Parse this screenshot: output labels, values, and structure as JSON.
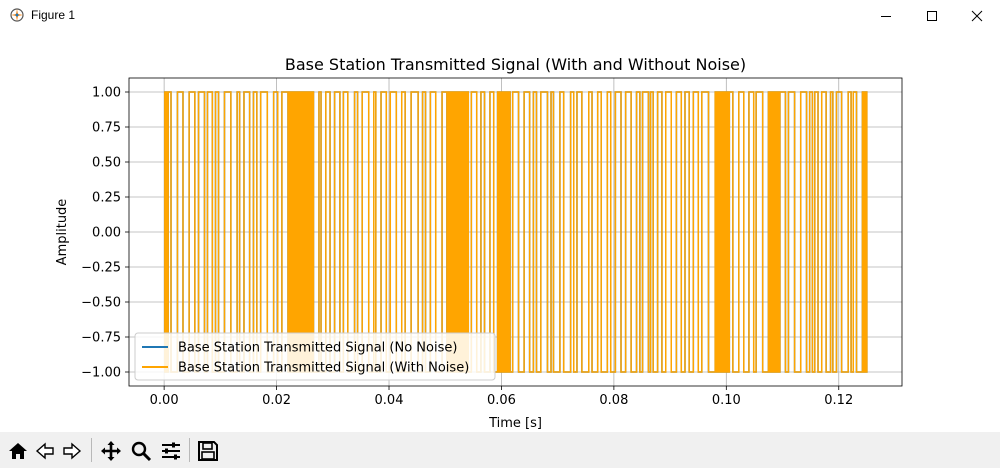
{
  "window": {
    "title": "Figure 1",
    "icons": [
      "app-icon",
      "minimize-icon",
      "maximize-icon",
      "close-icon"
    ]
  },
  "toolbar": {
    "icons": [
      "home-icon",
      "back-icon",
      "forward-icon",
      "pan-icon",
      "zoom-icon",
      "configure-subplots-icon",
      "save-icon"
    ]
  },
  "colors": {
    "no_noise": "#1f77b4",
    "with_noise": "#ffa500",
    "grid": "#b0b0b0",
    "axes": "#000000"
  },
  "chart_data": {
    "type": "line",
    "title": "Base Station Transmitted Signal (With and Without Noise)",
    "xlabel": "Time [s]",
    "ylabel": "Amplitude",
    "xlim": [
      -0.00625,
      0.13125
    ],
    "ylim": [
      -1.1,
      1.1
    ],
    "xticks": [
      0.0,
      0.02,
      0.04,
      0.06,
      0.08,
      0.1,
      0.12
    ],
    "xtick_labels": [
      "0.00",
      "0.02",
      "0.04",
      "0.06",
      "0.08",
      "0.10",
      "0.12"
    ],
    "yticks": [
      1.0,
      0.75,
      0.5,
      0.25,
      0.0,
      -0.25,
      -0.5,
      -0.75,
      -1.0
    ],
    "ytick_labels": [
      "1.00",
      "0.75",
      "0.50",
      "0.25",
      "0.00",
      "−0.25",
      "−0.50",
      "−0.75",
      "−1.00"
    ],
    "grid": true,
    "legend": "lower-left",
    "series": [
      {
        "name": "Base Station Transmitted Signal (No Noise)",
        "color": "#1f77b4",
        "description": "Square-wave style signal switching between 1.0 and -1.0 over t = 0 to 0.125 s"
      },
      {
        "name": "Base Station Transmitted Signal (With Noise)",
        "color": "#ffa500",
        "description": "Same signal plotted on top; visually identical bands between -1.0 and 1.0"
      }
    ],
    "signal": {
      "t_start": 0.0,
      "t_end": 0.125,
      "high": 1.0,
      "low": -1.0,
      "end_value": 0.0,
      "dense_regions": [
        [
          0.0,
          0.0006
        ],
        [
          0.022,
          0.0265
        ],
        [
          0.05,
          0.054
        ],
        [
          0.059,
          0.0615
        ],
        [
          0.0975,
          0.1005
        ],
        [
          0.1065,
          0.1095
        ],
        [
          0.124,
          0.125
        ]
      ]
    }
  }
}
